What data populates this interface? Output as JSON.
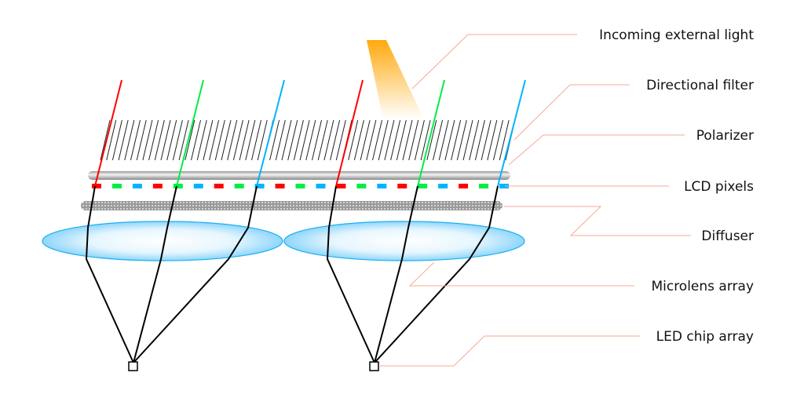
{
  "labels": {
    "incoming": "Incoming external light",
    "directional": "Directional filter",
    "polarizer": "Polarizer",
    "lcd": "LCD pixels",
    "diffuser": "Diffuser",
    "microlens": "Microlens array",
    "led": "LED chip array"
  },
  "colors": {
    "red": "#ff0000",
    "green": "#00ee44",
    "blue": "#00b4ff",
    "callout": "#f7a898",
    "light": "#ffb020",
    "lens": "#1ab0f0"
  }
}
